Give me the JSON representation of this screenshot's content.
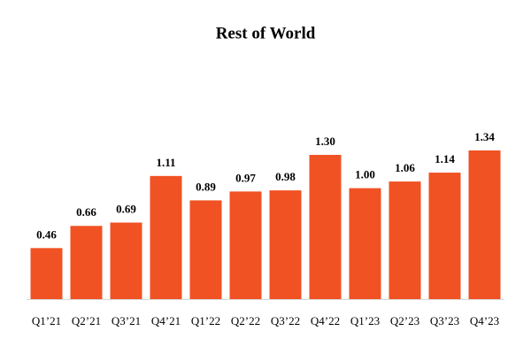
{
  "chart_data": {
    "type": "bar",
    "title": "Rest of World",
    "categories": [
      "Q1’21",
      "Q2’21",
      "Q3’21",
      "Q4’21",
      "Q1’22",
      "Q2’22",
      "Q3’22",
      "Q4’22",
      "Q1’23",
      "Q2’23",
      "Q3’23",
      "Q4’23"
    ],
    "values": [
      0.46,
      0.66,
      0.69,
      1.11,
      0.89,
      0.97,
      0.98,
      1.3,
      1.0,
      1.06,
      1.14,
      1.34
    ],
    "value_labels": [
      "0.46",
      "0.66",
      "0.69",
      "1.11",
      "0.89",
      "0.97",
      "0.98",
      "1.30",
      "1.00",
      "1.06",
      "1.14",
      "1.34"
    ],
    "color": "#f05223"
  }
}
